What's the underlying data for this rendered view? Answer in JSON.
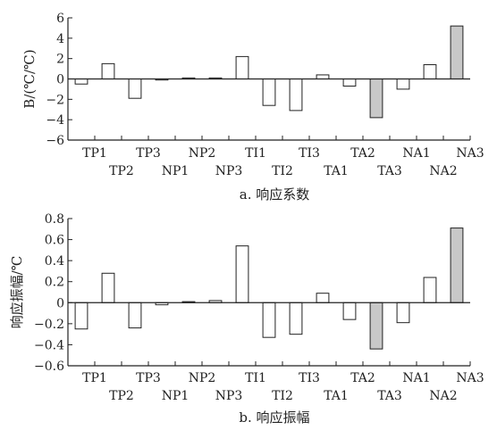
{
  "chart_data": [
    {
      "type": "bar",
      "caption": "a. 响应系数",
      "ylabel": "B/(℃/℃)",
      "xlabel": "",
      "ylim": [
        -6,
        6
      ],
      "yticks": [
        -6,
        -4,
        -2,
        0,
        2,
        4,
        6
      ],
      "ytick_labels": [
        "−6",
        "−4",
        "−2",
        "0",
        "2",
        "4",
        "6"
      ],
      "grid": false,
      "legend": "none",
      "categories": [
        "TP1",
        "TP2",
        "TP3",
        "NP1",
        "NP2",
        "NP3",
        "TI1",
        "TI2",
        "TI3",
        "TA1",
        "TA2",
        "TA3",
        "NA1",
        "NA2",
        "NA3"
      ],
      "values": [
        -0.5,
        1.5,
        -1.9,
        -0.1,
        0.1,
        0.1,
        2.2,
        -2.6,
        -3.1,
        0.4,
        -0.7,
        -3.8,
        -1.0,
        1.4,
        5.2
      ],
      "highlighted": [
        "TA3",
        "NA3"
      ],
      "colors": {
        "default": "#ffffff",
        "highlight": "#c8c8c8",
        "stroke": "#222222"
      }
    },
    {
      "type": "bar",
      "caption": "b. 响应振幅",
      "ylabel": "响应振幅/℃",
      "xlabel": "",
      "ylim": [
        -0.6,
        0.8
      ],
      "yticks": [
        -0.6,
        -0.4,
        -0.2,
        0,
        0.2,
        0.4,
        0.6,
        0.8
      ],
      "ytick_labels": [
        "−0.6",
        "−0.4",
        "−0.2",
        "0",
        "0.2",
        "0.4",
        "0.6",
        "0.8"
      ],
      "grid": false,
      "legend": "none",
      "categories": [
        "TP1",
        "TP2",
        "TP3",
        "NP1",
        "NP2",
        "NP3",
        "TI1",
        "TI2",
        "TI3",
        "TA1",
        "TA2",
        "TA3",
        "NA1",
        "NA2",
        "NA3"
      ],
      "values": [
        -0.25,
        0.28,
        -0.24,
        -0.02,
        0.01,
        0.02,
        0.54,
        -0.33,
        -0.3,
        0.09,
        -0.16,
        -0.44,
        -0.19,
        0.24,
        0.71
      ],
      "highlighted": [
        "TA3",
        "NA3"
      ],
      "colors": {
        "default": "#ffffff",
        "highlight": "#c8c8c8",
        "stroke": "#222222"
      }
    }
  ]
}
